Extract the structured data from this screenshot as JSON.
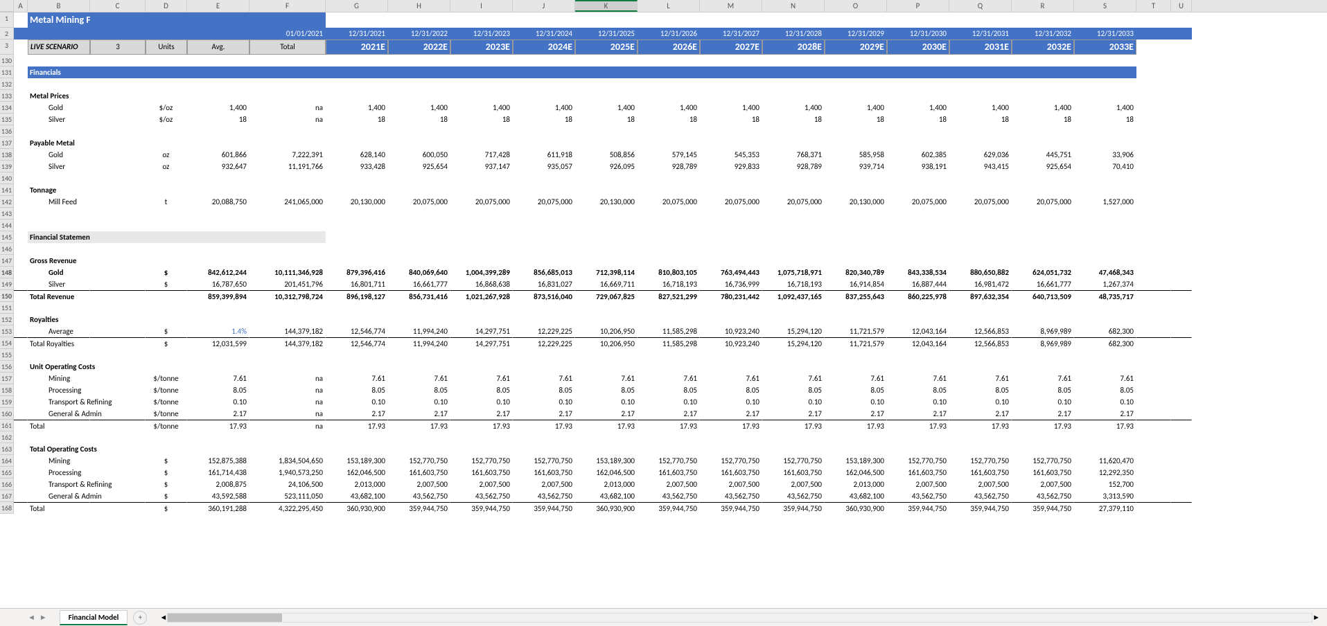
{
  "title": "Metal Mining Financial Model",
  "live_scenario_label": "LIVE SCENARIO",
  "live_scenario_val": "3",
  "hdr": {
    "units": "Units",
    "avg": "Avg.",
    "total": "Total"
  },
  "base_date": "01/01/2021",
  "cols": [
    "A",
    "B",
    "C",
    "D",
    "E",
    "F",
    "G",
    "H",
    "I",
    "J",
    "K",
    "L",
    "M",
    "N",
    "O",
    "P",
    "Q",
    "R",
    "S",
    "T",
    "U"
  ],
  "active_col": "K",
  "dates": [
    "12/31/2021",
    "12/31/2022",
    "12/31/2023",
    "12/31/2024",
    "12/31/2025",
    "12/31/2026",
    "12/31/2027",
    "12/31/2028",
    "12/31/2029",
    "12/31/2030",
    "12/31/2031",
    "12/31/2032",
    "12/31/2033"
  ],
  "years": [
    "2021E",
    "2022E",
    "2023E",
    "2024E",
    "2025E",
    "2026E",
    "2027E",
    "2028E",
    "2029E",
    "2030E",
    "2031E",
    "2032E",
    "2033E"
  ],
  "row_ids": [
    "1",
    "2",
    "3",
    "130",
    "131",
    "132",
    "133",
    "134",
    "135",
    "136",
    "137",
    "138",
    "139",
    "140",
    "141",
    "142",
    "143",
    "144",
    "145",
    "146",
    "147",
    "148",
    "149",
    "150",
    "151",
    "152",
    "153",
    "154",
    "155",
    "156",
    "157",
    "158",
    "159",
    "160",
    "161",
    "162",
    "163",
    "164",
    "165",
    "166",
    "167",
    "168"
  ],
  "sections": {
    "financials": "Financials",
    "statements": "Financial Statements"
  },
  "prices": {
    "title": "Metal Prices",
    "rows": [
      {
        "name": "Gold",
        "unit": "$/oz",
        "avg": "1,400",
        "total": "na",
        "vals": [
          "1,400",
          "1,400",
          "1,400",
          "1,400",
          "1,400",
          "1,400",
          "1,400",
          "1,400",
          "1,400",
          "1,400",
          "1,400",
          "1,400",
          "1,400"
        ]
      },
      {
        "name": "Silver",
        "unit": "$/oz",
        "avg": "18",
        "total": "na",
        "vals": [
          "18",
          "18",
          "18",
          "18",
          "18",
          "18",
          "18",
          "18",
          "18",
          "18",
          "18",
          "18",
          "18"
        ]
      }
    ]
  },
  "payable": {
    "title": "Payable Metal",
    "rows": [
      {
        "name": "Gold",
        "unit": "oz",
        "avg": "601,866",
        "total": "7,222,391",
        "vals": [
          "628,140",
          "600,050",
          "717,428",
          "611,918",
          "508,856",
          "579,145",
          "545,353",
          "768,371",
          "585,958",
          "602,385",
          "629,036",
          "445,751",
          "33,906"
        ]
      },
      {
        "name": "Silver",
        "unit": "oz",
        "avg": "932,647",
        "total": "11,191,766",
        "vals": [
          "933,428",
          "925,654",
          "937,147",
          "935,057",
          "926,095",
          "928,789",
          "929,833",
          "928,789",
          "939,714",
          "938,191",
          "943,415",
          "925,654",
          "70,410"
        ]
      }
    ]
  },
  "tonnage": {
    "title": "Tonnage",
    "rows": [
      {
        "name": "Mill Feed",
        "unit": "t",
        "avg": "20,088,750",
        "total": "241,065,000",
        "vals": [
          "20,130,000",
          "20,075,000",
          "20,075,000",
          "20,075,000",
          "20,130,000",
          "20,075,000",
          "20,075,000",
          "20,075,000",
          "20,130,000",
          "20,075,000",
          "20,075,000",
          "20,075,000",
          "1,527,000"
        ]
      }
    ]
  },
  "revenue": {
    "title": "Gross Revenue",
    "rows": [
      {
        "name": "Gold",
        "unit": "$",
        "avg": "842,612,244",
        "total": "10,111,346,928",
        "vals": [
          "879,396,416",
          "840,069,640",
          "1,004,399,289",
          "856,685,013",
          "712,398,114",
          "810,803,105",
          "763,494,443",
          "1,075,718,971",
          "820,340,789",
          "843,338,534",
          "880,650,882",
          "624,051,732",
          "47,468,343"
        ],
        "bold": true
      },
      {
        "name": "Silver",
        "unit": "$",
        "avg": "16,787,650",
        "total": "201,451,796",
        "vals": [
          "16,801,711",
          "16,661,777",
          "16,868,638",
          "16,831,027",
          "16,669,711",
          "16,718,193",
          "16,736,999",
          "16,718,193",
          "16,914,854",
          "16,887,444",
          "16,981,472",
          "16,661,777",
          "1,267,374"
        ]
      }
    ],
    "total": {
      "name": "Total Revenue",
      "unit": "",
      "avg": "859,399,894",
      "total": "10,312,798,724",
      "vals": [
        "896,198,127",
        "856,731,416",
        "1,021,267,928",
        "873,516,040",
        "729,067,825",
        "827,521,299",
        "780,231,442",
        "1,092,437,165",
        "837,255,643",
        "860,225,978",
        "897,632,354",
        "640,713,509",
        "48,735,717"
      ]
    }
  },
  "royalties": {
    "title": "Royalties",
    "avg_row": {
      "name": "Average",
      "unit": "$",
      "avg": "1.4%",
      "total": "144,379,182",
      "vals": [
        "12,546,774",
        "11,994,240",
        "14,297,751",
        "12,229,225",
        "10,206,950",
        "11,585,298",
        "10,923,240",
        "15,294,120",
        "11,721,579",
        "12,043,164",
        "12,566,853",
        "8,969,989",
        "682,300"
      ]
    },
    "total": {
      "name": "Total Royalties",
      "unit": "$",
      "avg": "12,031,599",
      "total": "144,379,182",
      "vals": [
        "12,546,774",
        "11,994,240",
        "14,297,751",
        "12,229,225",
        "10,206,950",
        "11,585,298",
        "10,923,240",
        "15,294,120",
        "11,721,579",
        "12,043,164",
        "12,566,853",
        "8,969,989",
        "682,300"
      ]
    }
  },
  "unit_costs": {
    "title": "Unit Operating Costs",
    "rows": [
      {
        "name": "Mining",
        "unit": "$/tonne",
        "avg": "7.61",
        "total": "na",
        "vals": [
          "7.61",
          "7.61",
          "7.61",
          "7.61",
          "7.61",
          "7.61",
          "7.61",
          "7.61",
          "7.61",
          "7.61",
          "7.61",
          "7.61",
          "7.61"
        ]
      },
      {
        "name": "Processing",
        "unit": "$/tonne",
        "avg": "8.05",
        "total": "na",
        "vals": [
          "8.05",
          "8.05",
          "8.05",
          "8.05",
          "8.05",
          "8.05",
          "8.05",
          "8.05",
          "8.05",
          "8.05",
          "8.05",
          "8.05",
          "8.05"
        ]
      },
      {
        "name": "Transport & Refining",
        "unit": "$/tonne",
        "avg": "0.10",
        "total": "na",
        "vals": [
          "0.10",
          "0.10",
          "0.10",
          "0.10",
          "0.10",
          "0.10",
          "0.10",
          "0.10",
          "0.10",
          "0.10",
          "0.10",
          "0.10",
          "0.10"
        ]
      },
      {
        "name": "General & Admin",
        "unit": "$/tonne",
        "avg": "2.17",
        "total": "na",
        "vals": [
          "2.17",
          "2.17",
          "2.17",
          "2.17",
          "2.17",
          "2.17",
          "2.17",
          "2.17",
          "2.17",
          "2.17",
          "2.17",
          "2.17",
          "2.17"
        ]
      }
    ],
    "total": {
      "name": "Total",
      "unit": "$/tonne",
      "avg": "17.93",
      "total": "na",
      "vals": [
        "17.93",
        "17.93",
        "17.93",
        "17.93",
        "17.93",
        "17.93",
        "17.93",
        "17.93",
        "17.93",
        "17.93",
        "17.93",
        "17.93",
        "17.93"
      ]
    }
  },
  "op_costs": {
    "title": "Total Operating Costs",
    "rows": [
      {
        "name": "Mining",
        "unit": "$",
        "avg": "152,875,388",
        "total": "1,834,504,650",
        "vals": [
          "153,189,300",
          "152,770,750",
          "152,770,750",
          "152,770,750",
          "153,189,300",
          "152,770,750",
          "152,770,750",
          "152,770,750",
          "153,189,300",
          "152,770,750",
          "152,770,750",
          "152,770,750",
          "11,620,470"
        ]
      },
      {
        "name": "Processing",
        "unit": "$",
        "avg": "161,714,438",
        "total": "1,940,573,250",
        "vals": [
          "162,046,500",
          "161,603,750",
          "161,603,750",
          "161,603,750",
          "162,046,500",
          "161,603,750",
          "161,603,750",
          "161,603,750",
          "162,046,500",
          "161,603,750",
          "161,603,750",
          "161,603,750",
          "12,292,350"
        ]
      },
      {
        "name": "Transport & Refining",
        "unit": "$",
        "avg": "2,008,875",
        "total": "24,106,500",
        "vals": [
          "2,013,000",
          "2,007,500",
          "2,007,500",
          "2,007,500",
          "2,013,000",
          "2,007,500",
          "2,007,500",
          "2,007,500",
          "2,013,000",
          "2,007,500",
          "2,007,500",
          "2,007,500",
          "152,700"
        ]
      },
      {
        "name": "General & Admin",
        "unit": "$",
        "avg": "43,592,588",
        "total": "523,111,050",
        "vals": [
          "43,682,100",
          "43,562,750",
          "43,562,750",
          "43,562,750",
          "43,682,100",
          "43,562,750",
          "43,562,750",
          "43,562,750",
          "43,682,100",
          "43,562,750",
          "43,562,750",
          "43,562,750",
          "3,313,590"
        ]
      }
    ],
    "total": {
      "name": "Total",
      "unit": "$",
      "avg": "360,191,288",
      "total": "4,322,295,450",
      "vals": [
        "360,930,900",
        "359,944,750",
        "359,944,750",
        "359,944,750",
        "360,930,900",
        "359,944,750",
        "359,944,750",
        "359,944,750",
        "360,930,900",
        "359,944,750",
        "359,944,750",
        "359,944,750",
        "27,379,110"
      ]
    }
  },
  "tab_name": "Financial Model",
  "colors": {
    "header_bg": "#4472c4",
    "grey": "#d9d9d9",
    "link": "#4472c4",
    "excel_green": "#107c41"
  }
}
